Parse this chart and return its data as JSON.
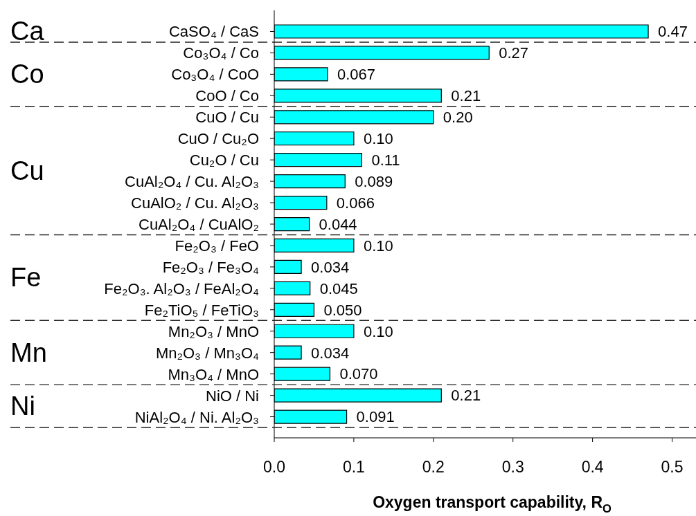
{
  "chart_data": {
    "type": "bar",
    "orientation": "horizontal",
    "categories": [
      "CaSO₄ / CaS",
      "Co₃O₄ / Co",
      "Co₃O₄ / CoO",
      "CoO / Co",
      "CuO / Cu",
      "CuO / Cu₂O",
      "Cu₂O / Cu",
      "CuAl₂O₄ / Cu. Al₂O₃",
      "CuAlO₂ / Cu. Al₂O₃",
      "CuAl₂O₄ / CuAlO₂",
      "Fe₂O₃ / FeO",
      "Fe₂O₃ / Fe₃O₄",
      "Fe₂O₃. Al₂O₃ / FeAl₂O₄",
      "Fe₂TiO₅ / FeTiO₃",
      "Mn₂O₃ / MnO",
      "Mn₂O₃ / Mn₃O₄",
      "Mn₃O₄ / MnO",
      "NiO / Ni",
      "NiAl₂O₄ / Ni. Al₂O₃"
    ],
    "values": [
      0.47,
      0.27,
      0.067,
      0.21,
      0.2,
      0.1,
      0.11,
      0.089,
      0.066,
      0.044,
      0.1,
      0.034,
      0.045,
      0.05,
      0.1,
      0.034,
      0.07,
      0.21,
      0.091
    ],
    "value_labels": [
      "0.47",
      "0.27",
      "0.067",
      "0.21",
      "0.20",
      "0.10",
      "0.11",
      "0.089",
      "0.066",
      "0.044",
      "0.10",
      "0.034",
      "0.045",
      "0.050",
      "0.10",
      "0.034",
      "0.070",
      "0.21",
      "0.091"
    ],
    "color": "#00ffff",
    "xlabel": "Oxygen transport capability, R$_{O}$",
    "xlim": [
      0,
      0.53
    ],
    "xticks": [
      {
        "value": 0,
        "label": "0.0"
      },
      0.1,
      0.2,
      0.3,
      0.4,
      0.5
    ],
    "ref_lines": [
      {
        "axis": "y",
        "value": "CaSO₄ / CaS",
        "line_style": "dashed"
      },
      {
        "axis": "y",
        "value": "CoO / Co",
        "line_style": "dashed"
      },
      {
        "axis": "y",
        "value": "CuAl₂O₄ / CuAlO₂",
        "line_style": "dashed"
      },
      {
        "axis": "y",
        "value": "Fe₂TiO₅ / FeTiO₃",
        "line_style": "dashed"
      },
      {
        "axis": "y",
        "value": "Mn₃O₄ / MnO",
        "line_style": "dashed"
      },
      {
        "axis": "y",
        "value": "NiAl₂O₄ / Ni. Al₂O₃",
        "line_style": "dashed"
      }
    ],
    "annotations": [
      "Ca",
      "Co",
      "Cu",
      "Fe",
      "Mn",
      "Ni"
    ]
  }
}
